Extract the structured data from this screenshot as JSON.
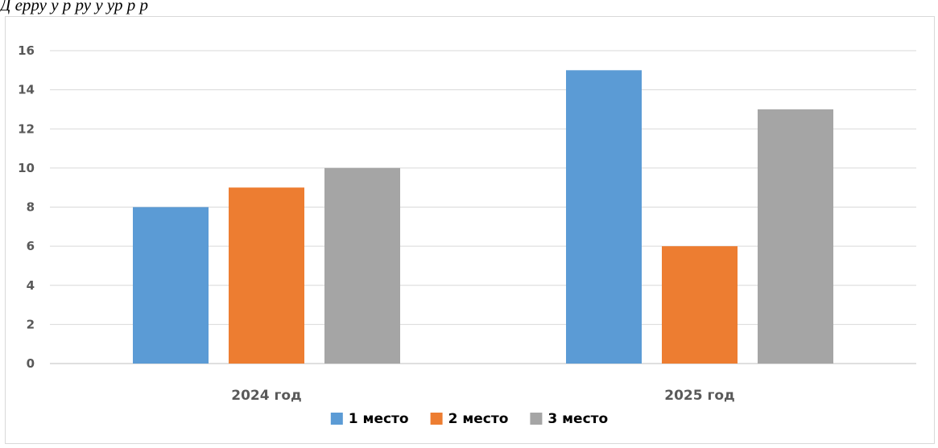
{
  "header": {
    "text": "Д                  ерру                                    у                                    р                         ру  у  ур     р   р"
  },
  "chart_data": {
    "type": "bar",
    "title": "",
    "xlabel": "",
    "ylabel": "",
    "categories": [
      "2024 год",
      "2025 год"
    ],
    "series": [
      {
        "name": "1 место",
        "values": [
          8,
          15
        ],
        "color": "#5B9BD5"
      },
      {
        "name": "2 место",
        "values": [
          9,
          6
        ],
        "color": "#ED7D31"
      },
      {
        "name": "3 место",
        "values": [
          10,
          13
        ],
        "color": "#A5A5A5"
      }
    ],
    "ylim": [
      0,
      16
    ],
    "yticks": [
      0,
      2,
      4,
      6,
      8,
      10,
      12,
      14,
      16
    ],
    "grid": true,
    "legend_position": "bottom"
  }
}
